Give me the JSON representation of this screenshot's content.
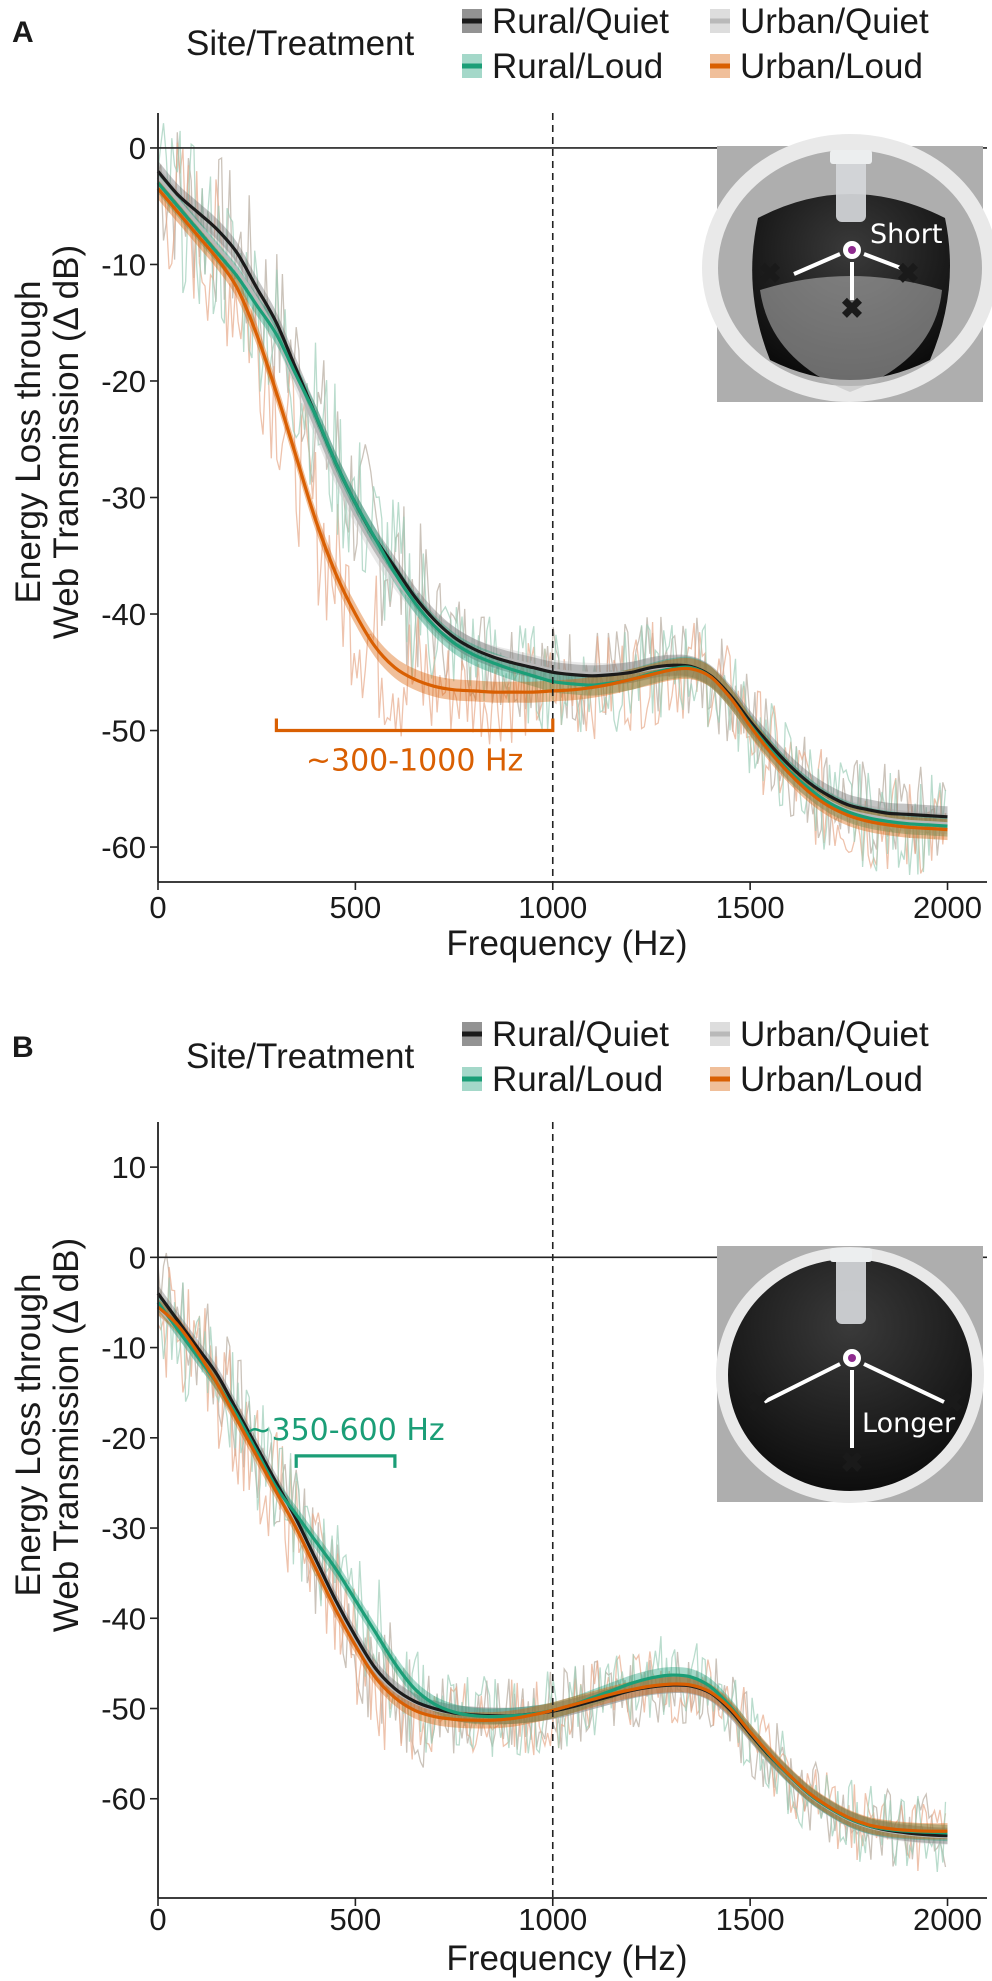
{
  "legend": {
    "title": "Site/Treatment",
    "items": [
      {
        "label": "Rural/Quiet",
        "color": "#1b1b1b"
      },
      {
        "label": "Urban/Quiet",
        "color": "#b9b9b9"
      },
      {
        "label": "Rural/Loud",
        "color": "#1b9e77"
      },
      {
        "label": "Urban/Loud",
        "color": "#d95f02"
      }
    ]
  },
  "chart_data": [
    {
      "panel": "A",
      "type": "line",
      "xlabel": "Frequency (Hz)",
      "ylabel": [
        "Energy Loss through",
        "Web Transmission (Δ dB)"
      ],
      "xlim": [
        0,
        2100
      ],
      "ylim": [
        -63,
        3
      ],
      "xticks": [
        0,
        500,
        1000,
        1500,
        2000
      ],
      "yticks": [
        0,
        -10,
        -20,
        -30,
        -40,
        -50,
        -60
      ],
      "hline": 0,
      "vline": 1000,
      "x": [
        0,
        50,
        100,
        150,
        200,
        250,
        300,
        350,
        400,
        450,
        500,
        550,
        600,
        650,
        700,
        750,
        800,
        850,
        900,
        950,
        1000,
        1050,
        1100,
        1150,
        1200,
        1250,
        1300,
        1350,
        1400,
        1450,
        1500,
        1550,
        1600,
        1650,
        1700,
        1750,
        1800,
        1850,
        1900,
        1950,
        2000
      ],
      "series": [
        {
          "name": "Rural/Quiet",
          "values": [
            -2,
            -4,
            -5.5,
            -7,
            -9,
            -12,
            -15,
            -19,
            -23,
            -27,
            -30.5,
            -33.5,
            -36,
            -38.5,
            -40.5,
            -42,
            -43,
            -43.7,
            -44.2,
            -44.6,
            -45,
            -45.2,
            -45.3,
            -45.2,
            -45,
            -44.6,
            -44.4,
            -44.5,
            -45.3,
            -47,
            -49.2,
            -51.2,
            -53,
            -54.5,
            -55.6,
            -56.4,
            -56.8,
            -57.1,
            -57.2,
            -57.3,
            -57.4
          ]
        },
        {
          "name": "Urban/Quiet",
          "values": [
            -2.5,
            -4.5,
            -6.5,
            -8.5,
            -10.5,
            -13,
            -16,
            -20,
            -24,
            -28,
            -31.5,
            -34.5,
            -37,
            -39,
            -40.8,
            -42,
            -43,
            -43.6,
            -44,
            -44.4,
            -44.8,
            -45,
            -45.1,
            -45.1,
            -45,
            -44.7,
            -44.5,
            -44.6,
            -45.4,
            -47.2,
            -49.5,
            -51.6,
            -53.5,
            -55,
            -56.1,
            -56.9,
            -57.3,
            -57.6,
            -57.8,
            -57.9,
            -58
          ]
        },
        {
          "name": "Rural/Loud",
          "values": [
            -3,
            -5,
            -7,
            -9,
            -11,
            -13.5,
            -16,
            -19.5,
            -23,
            -27,
            -30.5,
            -33.5,
            -36.5,
            -39,
            -41,
            -42.5,
            -43.5,
            -44.2,
            -44.8,
            -45.3,
            -45.8,
            -46,
            -46.1,
            -45.9,
            -45.6,
            -45.1,
            -44.7,
            -44.6,
            -45.4,
            -47.2,
            -49.5,
            -51.6,
            -53.5,
            -55,
            -56.2,
            -57,
            -57.5,
            -57.8,
            -58,
            -58.1,
            -58.2
          ]
        },
        {
          "name": "Urban/Loud",
          "values": [
            -3.5,
            -5.5,
            -7.5,
            -9.5,
            -12,
            -16,
            -21,
            -26.5,
            -32,
            -36.5,
            -40,
            -42.8,
            -44.6,
            -45.6,
            -46.2,
            -46.5,
            -46.6,
            -46.7,
            -46.7,
            -46.7,
            -46.6,
            -46.5,
            -46.3,
            -46,
            -45.6,
            -45.2,
            -44.8,
            -44.7,
            -45.4,
            -47.2,
            -49.6,
            -51.8,
            -53.7,
            -55.3,
            -56.5,
            -57.3,
            -57.8,
            -58.1,
            -58.3,
            -58.4,
            -58.5
          ]
        }
      ],
      "bracket": {
        "x0": 300,
        "x1": 1000,
        "y": -50,
        "label": "~300-1000 Hz",
        "color": "#d95f02"
      },
      "inset_label": "Short"
    },
    {
      "panel": "B",
      "type": "line",
      "xlabel": "Frequency (Hz)",
      "ylabel": [
        "Energy Loss through",
        "Web Transmission (Δ dB)"
      ],
      "xlim": [
        0,
        2100
      ],
      "ylim": [
        -71,
        15
      ],
      "xticks": [
        0,
        500,
        1000,
        1500,
        2000
      ],
      "yticks": [
        10,
        0,
        -10,
        -20,
        -30,
        -40,
        -50,
        -60
      ],
      "hline": 0,
      "vline": 1000,
      "x": [
        0,
        50,
        100,
        150,
        200,
        250,
        300,
        350,
        400,
        450,
        500,
        550,
        600,
        650,
        700,
        750,
        800,
        850,
        900,
        950,
        1000,
        1050,
        1100,
        1150,
        1200,
        1250,
        1300,
        1350,
        1400,
        1450,
        1500,
        1550,
        1600,
        1650,
        1700,
        1750,
        1800,
        1850,
        1900,
        1950,
        2000
      ],
      "series": [
        {
          "name": "Rural/Quiet",
          "values": [
            -4,
            -7,
            -10,
            -13,
            -17,
            -21,
            -25,
            -29,
            -33.5,
            -38,
            -42,
            -45.5,
            -47.8,
            -49.2,
            -50,
            -50.5,
            -50.7,
            -50.8,
            -50.8,
            -50.6,
            -50.3,
            -49.8,
            -49.2,
            -48.6,
            -48,
            -47.6,
            -47.4,
            -47.5,
            -48.3,
            -50.2,
            -52.8,
            -55.3,
            -57.5,
            -59.5,
            -61,
            -62.2,
            -63,
            -63.5,
            -63.8,
            -64,
            -64.1
          ]
        },
        {
          "name": "Urban/Quiet",
          "values": [
            -5.5,
            -8,
            -11,
            -14,
            -17.5,
            -21.5,
            -25.5,
            -29.5,
            -34,
            -38.5,
            -42.5,
            -45.8,
            -48,
            -49.3,
            -50.1,
            -50.5,
            -50.7,
            -50.8,
            -50.8,
            -50.6,
            -50.3,
            -49.8,
            -49.2,
            -48.6,
            -48,
            -47.6,
            -47.4,
            -47.5,
            -48.3,
            -50.2,
            -52.8,
            -55.3,
            -57.6,
            -59.6,
            -61.1,
            -62.3,
            -63.1,
            -63.6,
            -63.9,
            -64.1,
            -64.2
          ]
        },
        {
          "name": "Rural/Loud",
          "values": [
            -5,
            -8,
            -11,
            -14,
            -17.5,
            -21.5,
            -25.5,
            -28.5,
            -31.5,
            -34.5,
            -38,
            -41.5,
            -45,
            -47.8,
            -49.5,
            -50.4,
            -50.8,
            -50.9,
            -50.8,
            -50.6,
            -50.2,
            -49.6,
            -48.8,
            -48,
            -47.2,
            -46.6,
            -46.3,
            -46.5,
            -47.6,
            -49.8,
            -52.6,
            -55.2,
            -57.5,
            -59.5,
            -61,
            -62.2,
            -63,
            -63.4,
            -63.6,
            -63.7,
            -63.8
          ]
        },
        {
          "name": "Urban/Loud",
          "values": [
            -5.5,
            -7.5,
            -10.5,
            -14,
            -18,
            -22,
            -26,
            -30,
            -34.5,
            -39,
            -43,
            -46.5,
            -48.8,
            -50.2,
            -50.9,
            -51.2,
            -51.3,
            -51.3,
            -51.1,
            -50.7,
            -50.2,
            -49.6,
            -49,
            -48.4,
            -47.9,
            -47.5,
            -47.3,
            -47.4,
            -48.2,
            -50,
            -52.6,
            -55.1,
            -57.4,
            -59.4,
            -60.9,
            -62.1,
            -62.9,
            -63.3,
            -63.5,
            -63.6,
            -63.6
          ]
        }
      ],
      "bracket": {
        "x0": 350,
        "x1": 600,
        "y": -22,
        "label": "~350-600 Hz",
        "color": "#1b9e77"
      },
      "inset_label": "Longer"
    }
  ]
}
